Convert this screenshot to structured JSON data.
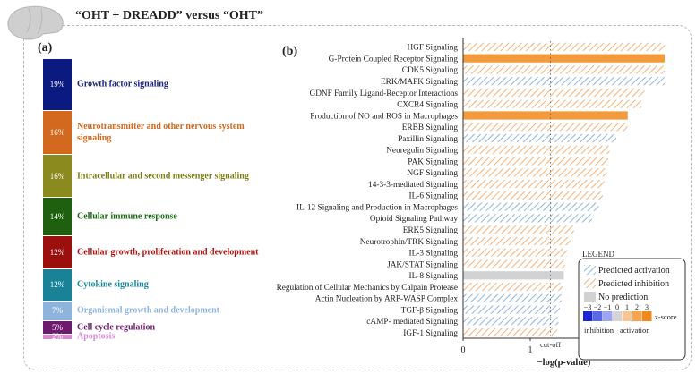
{
  "title": "“OHT + DREADD” versus “OHT”",
  "panel_a": {
    "label": "(a)",
    "segments": [
      {
        "pct": "19%",
        "value": 19,
        "label": "Growth factor signaling",
        "color": "#0a1a80",
        "labelColor": "#1a237e"
      },
      {
        "pct": "16%",
        "value": 16,
        "label": "Neurotransmitter and other nervous system signaling",
        "color": "#d2691e",
        "labelColor": "#d2691e"
      },
      {
        "pct": "16%",
        "value": 16,
        "label": "Intracellular and second messenger signaling",
        "color": "#8a8a1e",
        "labelColor": "#7d7d14"
      },
      {
        "pct": "14%",
        "value": 14,
        "label": "Cellular immune response",
        "color": "#1f5f10",
        "labelColor": "#1a6a12"
      },
      {
        "pct": "12%",
        "value": 12,
        "label": "Cellular growth, proliferation and development",
        "color": "#9b0f0f",
        "labelColor": "#b01212"
      },
      {
        "pct": "12%",
        "value": 12,
        "label": "Cytokine signaling",
        "color": "#1a8296",
        "labelColor": "#16869a"
      },
      {
        "pct": "7%",
        "value": 7,
        "label": "Organismal growth and development",
        "color": "#8fb4dc",
        "labelColor": "#8fb4dc"
      },
      {
        "pct": "5%",
        "value": 5,
        "label": "Cell cycle regulation",
        "color": "#6e1a6e",
        "labelColor": "#6e1a6e"
      },
      {
        "pct": "2%",
        "value": 2,
        "label": "Apoptosis",
        "color": "#d68ad6",
        "labelColor": "#d68ad6"
      }
    ]
  },
  "panel_b": {
    "label": "(b)",
    "cutoff_label": "cut-off",
    "legend": {
      "title": "LEGEND",
      "activation": "Predicted activation",
      "inhibition": "Predicted inhibition",
      "noprediction": "No prediction",
      "zscore_label": "z-score",
      "zscore_ticks": [
        "−3",
        "−2",
        "−1",
        "0",
        "1",
        "2",
        "3"
      ],
      "inhibition_label": "inhibition",
      "activation_label": "activation"
    }
  },
  "chart_data": {
    "type": "bar",
    "orientation": "horizontal",
    "xlabel": "−log(p-value)",
    "xlim": [
      0,
      3
    ],
    "xticks": [
      "0",
      "1",
      "2",
      "3"
    ],
    "cutoff": 1.3,
    "categories": [
      "HGF Signaling",
      "G-Protein Coupled Receptor Signaling",
      "CDK5 Signaling",
      "ERK/MAPK Signaling",
      "GDNF Family Ligand-Receptor Interactions",
      "CXCR4 Signaling",
      "Production of NO and ROS in Macrophages",
      "ERBB Signaling",
      "Paxillin Signaling",
      "Neuregulin Signaling",
      "PAK Signaling",
      "NGF Signaling",
      "14-3-3-mediated Signaling",
      "IL-6 Signaling",
      "IL-12 Signaling and Production in Macrophages",
      "Opioid Signaling Pathway",
      "ERK5 Signaling",
      "Neurotrophin/TRK Signaling",
      "IL-3 Signaling",
      "JAK/STAT Signaling",
      "IL-8 Signaling",
      "Regulation of Cellular Mechanics by Calpain Protease",
      "Actin Nucleation by ARP-WASP Complex",
      "TGF-β Signaling",
      "cAMP- mediated Signaling",
      "IGF-1 Signaling"
    ],
    "values": [
      3.0,
      3.0,
      3.0,
      3.0,
      2.7,
      2.65,
      2.45,
      2.45,
      2.28,
      2.18,
      2.16,
      2.14,
      2.1,
      2.08,
      2.02,
      1.92,
      1.65,
      1.6,
      1.55,
      1.52,
      1.5,
      1.48,
      1.46,
      1.44,
      1.42,
      1.4
    ],
    "prediction": [
      "inhibition",
      "inhibition",
      "inhibition",
      "activation",
      "inhibition",
      "inhibition",
      "inhibition",
      "inhibition",
      "activation",
      "inhibition",
      "inhibition",
      "inhibition",
      "inhibition",
      "inhibition",
      "activation",
      "activation",
      "inhibition",
      "inhibition",
      "inhibition",
      "inhibition",
      "none",
      "inhibition",
      "activation",
      "activation",
      "activation",
      "inhibition"
    ],
    "solid": [
      false,
      true,
      false,
      false,
      false,
      false,
      true,
      false,
      false,
      false,
      false,
      false,
      false,
      false,
      false,
      false,
      false,
      false,
      false,
      false,
      false,
      false,
      false,
      false,
      false,
      false
    ],
    "colors": {
      "activation": "#8fb4dc",
      "inhibition": "#f5b27a",
      "solid": "#f39a3c",
      "none": "#d2d2d2"
    }
  }
}
